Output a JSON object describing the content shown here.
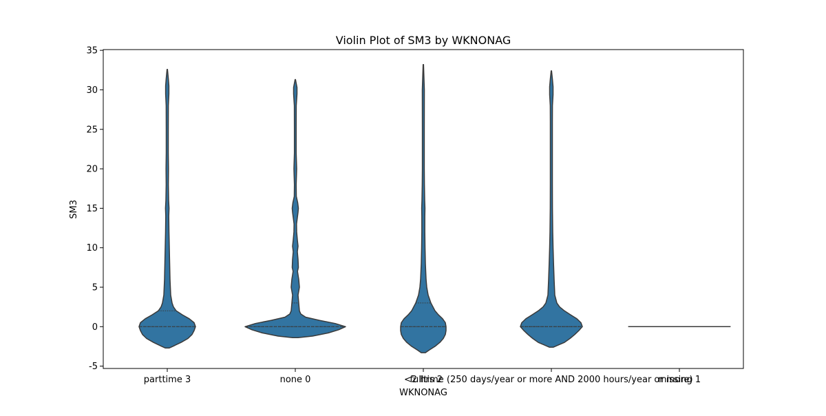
{
  "chart_data": {
    "type": "violin",
    "title": "Violin Plot of SM3 by WKNONAG",
    "xlabel": "WKNONAG",
    "ylabel": "SM3",
    "ylim": [
      -5.3,
      35.1
    ],
    "yticks": [
      -5,
      0,
      5,
      10,
      15,
      20,
      25,
      30,
      35
    ],
    "grid": false,
    "legend": "none",
    "fill_color": "#3274a1",
    "edge_color": "#3a3a3a",
    "categories": [
      "parttime 3",
      "none 0",
      "<2 hrs 2",
      "fulltime (250 days/year or more AND 2000 hours/year or more)",
      "missing 1"
    ],
    "violins": [
      {
        "category": "parttime 3",
        "quartiles": [
          0,
          0,
          2
        ],
        "profile": [
          [
            -2.7,
            3
          ],
          [
            -2.5,
            8
          ],
          [
            -2.0,
            20
          ],
          [
            -1.5,
            30
          ],
          [
            -1.0,
            36
          ],
          [
            -0.5,
            39
          ],
          [
            0,
            41
          ],
          [
            0.5,
            39
          ],
          [
            1,
            32
          ],
          [
            1.5,
            22
          ],
          [
            2,
            13
          ],
          [
            2.5,
            9
          ],
          [
            3,
            7
          ],
          [
            4,
            5
          ],
          [
            6,
            4
          ],
          [
            8,
            3.5
          ],
          [
            10,
            3
          ],
          [
            12,
            2.5
          ],
          [
            14,
            2.2
          ],
          [
            15,
            2.6
          ],
          [
            16,
            2
          ],
          [
            18,
            1.6
          ],
          [
            20,
            1.8
          ],
          [
            22,
            1.5
          ],
          [
            25,
            1.5
          ],
          [
            28,
            1.6
          ],
          [
            29.5,
            2.4
          ],
          [
            30.5,
            2.4
          ],
          [
            31.5,
            1.5
          ],
          [
            32.6,
            0.3
          ]
        ]
      },
      {
        "category": "none 0",
        "quartiles": [
          0,
          0,
          3
        ],
        "profile": [
          [
            -1.4,
            4
          ],
          [
            -1.2,
            25
          ],
          [
            -0.8,
            48
          ],
          [
            -0.4,
            63
          ],
          [
            0,
            73
          ],
          [
            0.4,
            58
          ],
          [
            0.8,
            35
          ],
          [
            1.2,
            15
          ],
          [
            1.6,
            8
          ],
          [
            2,
            6
          ],
          [
            3,
            5
          ],
          [
            4,
            4
          ],
          [
            5,
            6
          ],
          [
            6,
            5
          ],
          [
            7,
            3.2
          ],
          [
            7.5,
            4.5
          ],
          [
            8.5,
            4
          ],
          [
            9.5,
            3
          ],
          [
            10.2,
            4
          ],
          [
            11,
            3
          ],
          [
            12,
            2
          ],
          [
            13,
            1.8
          ],
          [
            14.5,
            4
          ],
          [
            15,
            4.5
          ],
          [
            15.7,
            3.5
          ],
          [
            16.5,
            1.5
          ],
          [
            18,
            1.3
          ],
          [
            20,
            2
          ],
          [
            22,
            1.3
          ],
          [
            25,
            1.3
          ],
          [
            28,
            1.4
          ],
          [
            29.5,
            2.5
          ],
          [
            30.3,
            2.5
          ],
          [
            31.3,
            0.3
          ]
        ]
      },
      {
        "category": "<2 hrs 2",
        "quartiles": [
          0,
          0,
          3
        ],
        "profile": [
          [
            -3.3,
            3
          ],
          [
            -3.0,
            8
          ],
          [
            -2.5,
            17
          ],
          [
            -2.0,
            24
          ],
          [
            -1.5,
            29
          ],
          [
            -1.0,
            32
          ],
          [
            -0.5,
            33
          ],
          [
            0,
            33
          ],
          [
            0.5,
            32
          ],
          [
            1,
            28
          ],
          [
            1.5,
            22
          ],
          [
            2,
            17
          ],
          [
            3,
            11
          ],
          [
            4,
            7
          ],
          [
            5,
            5
          ],
          [
            6,
            4
          ],
          [
            8,
            3
          ],
          [
            10,
            2.5
          ],
          [
            12,
            2.2
          ],
          [
            14,
            2.2
          ],
          [
            15,
            2.4
          ],
          [
            16,
            2
          ],
          [
            18,
            1.6
          ],
          [
            20,
            1.4
          ],
          [
            25,
            1.4
          ],
          [
            30,
            1.5
          ],
          [
            33.2,
            0.3
          ]
        ]
      },
      {
        "category": "fulltime (250 days/year or more AND 2000 hours/year or more)",
        "quartiles": [
          0,
          0,
          0
        ],
        "profile": [
          [
            -2.6,
            3
          ],
          [
            -2.3,
            11
          ],
          [
            -2.0,
            19
          ],
          [
            -1.5,
            27
          ],
          [
            -1.0,
            34
          ],
          [
            -0.5,
            40
          ],
          [
            0,
            45
          ],
          [
            0.5,
            43
          ],
          [
            1,
            37
          ],
          [
            1.5,
            28
          ],
          [
            2,
            19
          ],
          [
            2.5,
            12
          ],
          [
            3,
            8
          ],
          [
            4,
            5
          ],
          [
            6,
            4
          ],
          [
            8,
            3.2
          ],
          [
            10,
            2.5
          ],
          [
            12,
            2
          ],
          [
            15,
            1.6
          ],
          [
            18,
            1.5
          ],
          [
            22,
            1.5
          ],
          [
            26,
            1.5
          ],
          [
            28,
            1.6
          ],
          [
            29.4,
            2.5
          ],
          [
            30.4,
            2.5
          ],
          [
            31.4,
            1.5
          ],
          [
            32.4,
            0.3
          ]
        ]
      },
      {
        "category": "missing 1",
        "quartiles": [
          0,
          0,
          0
        ],
        "flat_value": 0
      }
    ]
  }
}
